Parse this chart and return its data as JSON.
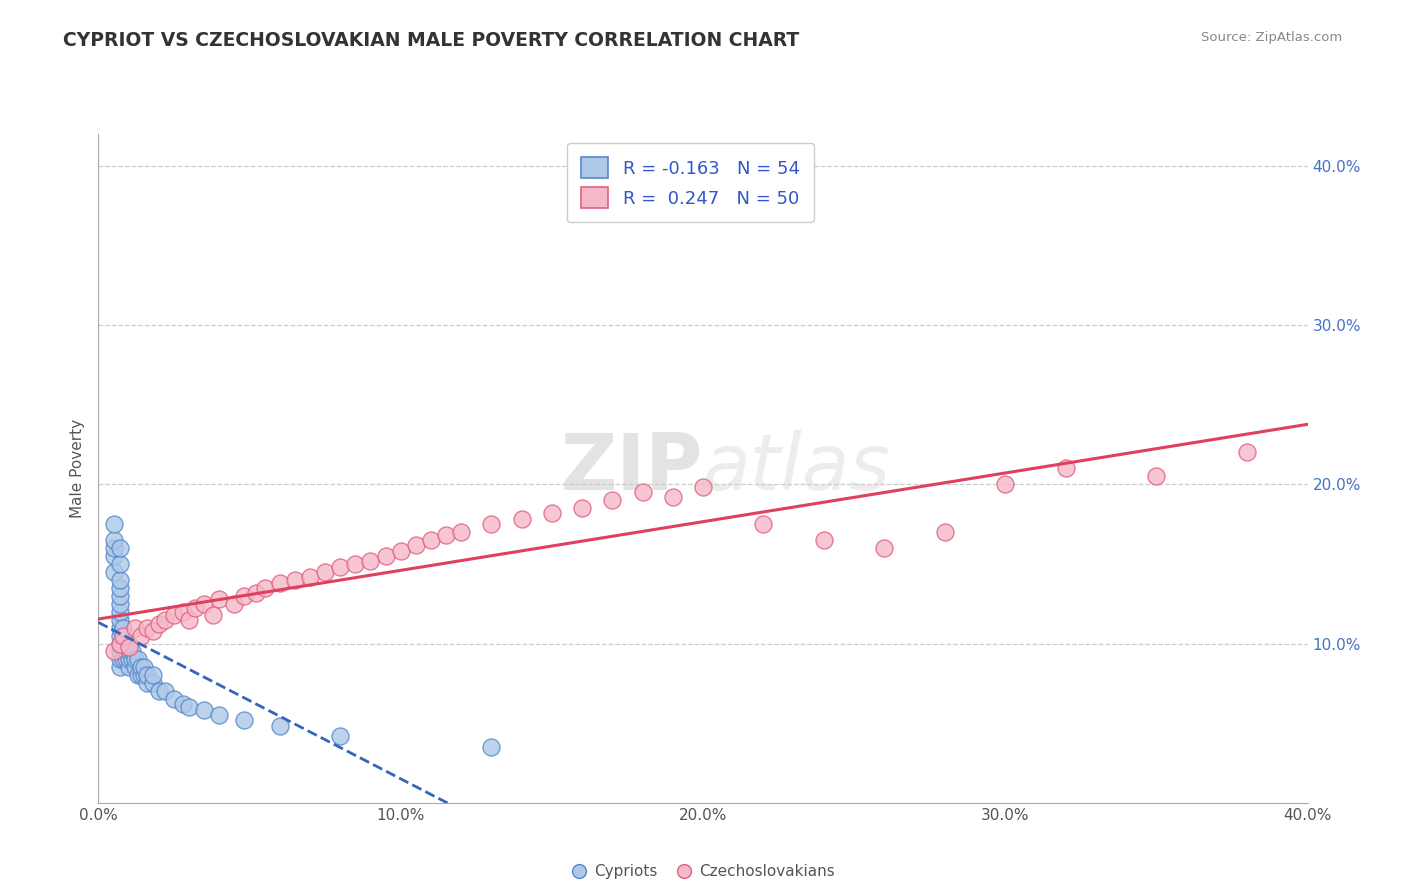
{
  "title": "CYPRIOT VS CZECHOSLOVAKIAN MALE POVERTY CORRELATION CHART",
  "source": "Source: ZipAtlas.com",
  "ylabel": "Male Poverty",
  "xlim": [
    0.0,
    0.4
  ],
  "ylim": [
    0.0,
    0.42
  ],
  "xtick_vals": [
    0.0,
    0.1,
    0.2,
    0.3,
    0.4
  ],
  "ytick_vals": [
    0.1,
    0.2,
    0.3,
    0.4
  ],
  "watermark_zip": "ZIP",
  "watermark_atlas": "atlas",
  "legend_label1": "R = -0.163   N = 54",
  "legend_label2": "R =  0.247   N = 50",
  "cypriot_color": "#adc8e8",
  "czechoslovakian_color": "#f5b8c8",
  "cypriot_edge": "#5588cc",
  "czechoslovakian_edge": "#e06080",
  "trend_cyp_color": "#3366bb",
  "trend_cze_color": "#e04060",
  "background_color": "#ffffff",
  "grid_color": "#cccccc",
  "title_color": "#333333",
  "cypriot_x": [
    0.005,
    0.005,
    0.005,
    0.005,
    0.005,
    0.007,
    0.007,
    0.007,
    0.007,
    0.007,
    0.007,
    0.007,
    0.007,
    0.007,
    0.007,
    0.007,
    0.007,
    0.007,
    0.007,
    0.008,
    0.008,
    0.008,
    0.009,
    0.009,
    0.009,
    0.01,
    0.01,
    0.01,
    0.01,
    0.011,
    0.011,
    0.012,
    0.012,
    0.013,
    0.013,
    0.014,
    0.014,
    0.015,
    0.015,
    0.016,
    0.016,
    0.018,
    0.018,
    0.02,
    0.022,
    0.025,
    0.028,
    0.03,
    0.035,
    0.04,
    0.048,
    0.06,
    0.08,
    0.13
  ],
  "cypriot_y": [
    0.145,
    0.155,
    0.16,
    0.165,
    0.175,
    0.085,
    0.09,
    0.095,
    0.1,
    0.105,
    0.11,
    0.115,
    0.12,
    0.125,
    0.13,
    0.135,
    0.14,
    0.15,
    0.16,
    0.09,
    0.1,
    0.11,
    0.09,
    0.095,
    0.1,
    0.085,
    0.09,
    0.095,
    0.1,
    0.09,
    0.095,
    0.085,
    0.09,
    0.08,
    0.09,
    0.08,
    0.085,
    0.08,
    0.085,
    0.075,
    0.08,
    0.075,
    0.08,
    0.07,
    0.07,
    0.065,
    0.062,
    0.06,
    0.058,
    0.055,
    0.052,
    0.048,
    0.042,
    0.035
  ],
  "czechoslovakian_x": [
    0.005,
    0.007,
    0.008,
    0.01,
    0.012,
    0.014,
    0.016,
    0.018,
    0.02,
    0.022,
    0.025,
    0.028,
    0.03,
    0.032,
    0.035,
    0.038,
    0.04,
    0.045,
    0.048,
    0.052,
    0.055,
    0.06,
    0.065,
    0.07,
    0.075,
    0.08,
    0.085,
    0.09,
    0.095,
    0.1,
    0.105,
    0.11,
    0.115,
    0.12,
    0.13,
    0.14,
    0.15,
    0.16,
    0.17,
    0.18,
    0.19,
    0.2,
    0.22,
    0.24,
    0.26,
    0.28,
    0.3,
    0.32,
    0.35,
    0.38
  ],
  "czechoslovakian_y": [
    0.095,
    0.1,
    0.105,
    0.098,
    0.11,
    0.105,
    0.11,
    0.108,
    0.112,
    0.115,
    0.118,
    0.12,
    0.115,
    0.122,
    0.125,
    0.118,
    0.128,
    0.125,
    0.13,
    0.132,
    0.135,
    0.138,
    0.14,
    0.142,
    0.145,
    0.148,
    0.15,
    0.152,
    0.155,
    0.158,
    0.162,
    0.165,
    0.168,
    0.17,
    0.175,
    0.178,
    0.182,
    0.185,
    0.19,
    0.195,
    0.192,
    0.198,
    0.175,
    0.165,
    0.16,
    0.17,
    0.2,
    0.21,
    0.205,
    0.22
  ]
}
